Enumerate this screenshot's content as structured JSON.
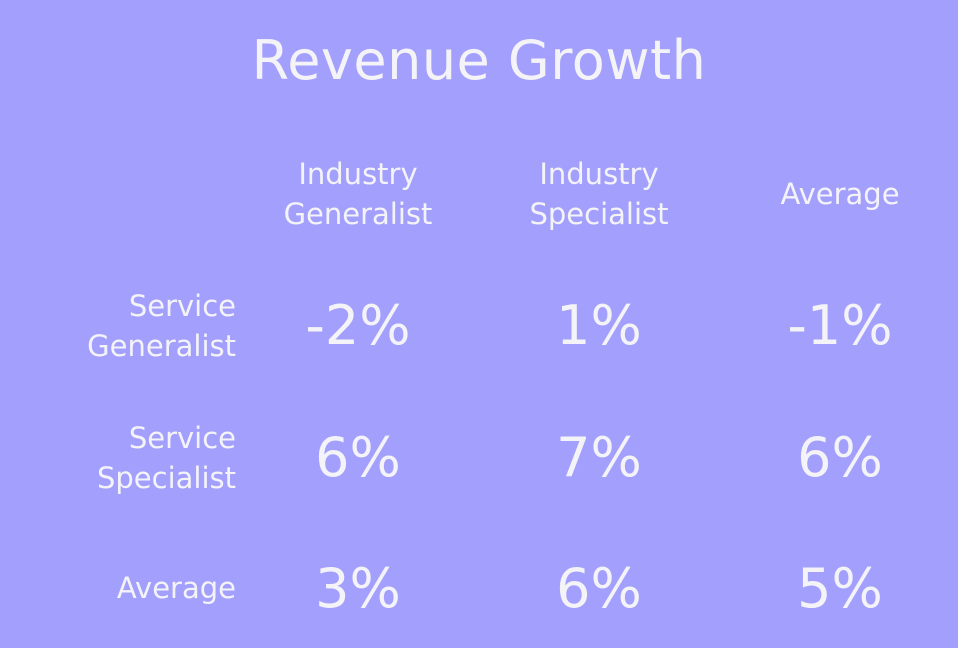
{
  "chart_data": {
    "type": "table",
    "title": "Revenue Growth",
    "columns": [
      "Industry\nGeneralist",
      "Industry\nSpecialist",
      "Average"
    ],
    "rows": [
      {
        "label": "Service\nGeneralist",
        "values": [
          "-2%",
          "1%",
          "-1%"
        ]
      },
      {
        "label": "Service\nSpecialist",
        "values": [
          "6%",
          "7%",
          "6%"
        ]
      },
      {
        "label": "Average",
        "values": [
          "3%",
          "6%",
          "5%"
        ]
      }
    ],
    "numeric_values": [
      [
        -2,
        1,
        -1
      ],
      [
        6,
        7,
        6
      ],
      [
        3,
        6,
        5
      ]
    ],
    "unit": "%"
  },
  "colors": {
    "background": "#a3a0fd",
    "text": "#f4f3f8"
  }
}
